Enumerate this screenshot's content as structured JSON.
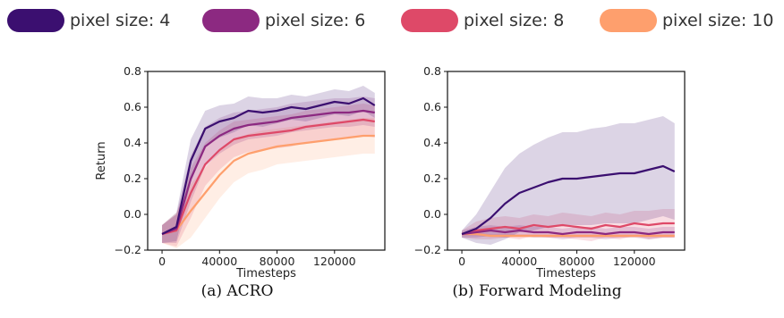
{
  "legend": [
    {
      "label": "pixel size: 4",
      "color": "#3b0f70"
    },
    {
      "label": "pixel size: 6",
      "color": "#8c2981"
    },
    {
      "label": "pixel size: 8",
      "color": "#de4968"
    },
    {
      "label": "pixel size: 10",
      "color": "#fe9f6d"
    }
  ],
  "captions": [
    "(a) ACRO",
    "(b) Forward Modeling"
  ],
  "chart_data": [
    {
      "type": "line",
      "title": "",
      "xlabel": "Timesteps",
      "ylabel": "Return",
      "xlim": [
        -10000,
        155000
      ],
      "ylim": [
        -0.2,
        0.8
      ],
      "xticks": [
        0,
        40000,
        80000,
        120000
      ],
      "yticks": [
        -0.2,
        0.0,
        0.2,
        0.4,
        0.6,
        0.8
      ],
      "xtick_labels": [
        "0",
        "40000",
        "80000",
        "120000"
      ],
      "ytick_labels": [
        "−0.2",
        "0.0",
        "0.2",
        "0.4",
        "0.6",
        "0.8"
      ],
      "x": [
        0,
        10000,
        20000,
        30000,
        40000,
        50000,
        60000,
        70000,
        80000,
        90000,
        100000,
        110000,
        120000,
        130000,
        140000,
        148000
      ],
      "series": [
        {
          "name": "pixel size: 4",
          "color": "#3b0f70",
          "values": [
            -0.11,
            -0.07,
            0.3,
            0.48,
            0.52,
            0.54,
            0.58,
            0.57,
            0.58,
            0.6,
            0.59,
            0.61,
            0.63,
            0.62,
            0.65,
            0.61
          ],
          "band": [
            0.05,
            0.08,
            0.12,
            0.1,
            0.09,
            0.08,
            0.08,
            0.08,
            0.07,
            0.07,
            0.07,
            0.07,
            0.07,
            0.07,
            0.07,
            0.07
          ]
        },
        {
          "name": "pixel size: 6",
          "color": "#8c2981",
          "values": [
            -0.11,
            -0.08,
            0.2,
            0.38,
            0.44,
            0.48,
            0.5,
            0.51,
            0.52,
            0.54,
            0.55,
            0.56,
            0.57,
            0.57,
            0.58,
            0.57
          ],
          "band": [
            0.05,
            0.08,
            0.13,
            0.11,
            0.1,
            0.09,
            0.08,
            0.08,
            0.08,
            0.08,
            0.08,
            0.08,
            0.08,
            0.08,
            0.08,
            0.08
          ]
        },
        {
          "name": "pixel size: 8",
          "color": "#de4968",
          "values": [
            -0.11,
            -0.09,
            0.12,
            0.28,
            0.36,
            0.42,
            0.44,
            0.45,
            0.46,
            0.47,
            0.49,
            0.5,
            0.51,
            0.52,
            0.53,
            0.52
          ],
          "band": [
            0.05,
            0.09,
            0.14,
            0.12,
            0.11,
            0.1,
            0.09,
            0.09,
            0.09,
            0.09,
            0.09,
            0.09,
            0.09,
            0.09,
            0.09,
            0.09
          ]
        },
        {
          "name": "pixel size: 10",
          "color": "#fe9f6d",
          "values": [
            -0.11,
            -0.09,
            0.02,
            0.12,
            0.22,
            0.3,
            0.34,
            0.36,
            0.38,
            0.39,
            0.4,
            0.41,
            0.42,
            0.43,
            0.44,
            0.44
          ],
          "band": [
            0.05,
            0.1,
            0.15,
            0.14,
            0.13,
            0.12,
            0.11,
            0.11,
            0.1,
            0.1,
            0.1,
            0.1,
            0.1,
            0.1,
            0.1,
            0.1
          ]
        }
      ]
    },
    {
      "type": "line",
      "title": "",
      "xlabel": "Timesteps",
      "ylabel": "",
      "xlim": [
        -10000,
        155000
      ],
      "ylim": [
        -0.2,
        0.8
      ],
      "xticks": [
        0,
        40000,
        80000,
        120000
      ],
      "yticks": [
        -0.2,
        0.0,
        0.2,
        0.4,
        0.6,
        0.8
      ],
      "xtick_labels": [
        "0",
        "40000",
        "80000",
        "120000"
      ],
      "ytick_labels": [
        "−0.2",
        "0.0",
        "0.2",
        "0.4",
        "0.6",
        "0.8"
      ],
      "x": [
        0,
        10000,
        20000,
        30000,
        40000,
        50000,
        60000,
        70000,
        80000,
        90000,
        100000,
        110000,
        120000,
        130000,
        140000,
        148000
      ],
      "series": [
        {
          "name": "pixel size: 4",
          "color": "#3b0f70",
          "values": [
            -0.11,
            -0.08,
            -0.02,
            0.06,
            0.12,
            0.15,
            0.18,
            0.2,
            0.2,
            0.21,
            0.22,
            0.23,
            0.23,
            0.25,
            0.27,
            0.24
          ],
          "band": [
            0.02,
            0.08,
            0.15,
            0.2,
            0.22,
            0.24,
            0.25,
            0.26,
            0.26,
            0.27,
            0.27,
            0.28,
            0.28,
            0.28,
            0.28,
            0.27
          ]
        },
        {
          "name": "pixel size: 6",
          "color": "#8c2981",
          "values": [
            -0.11,
            -0.1,
            -0.09,
            -0.1,
            -0.09,
            -0.1,
            -0.1,
            -0.11,
            -0.1,
            -0.1,
            -0.11,
            -0.1,
            -0.1,
            -0.11,
            -0.1,
            -0.1
          ],
          "band": [
            0.02,
            0.03,
            0.03,
            0.03,
            0.03,
            0.03,
            0.03,
            0.03,
            0.03,
            0.03,
            0.03,
            0.03,
            0.03,
            0.03,
            0.03,
            0.03
          ]
        },
        {
          "name": "pixel size: 8",
          "color": "#de4968",
          "values": [
            -0.11,
            -0.09,
            -0.08,
            -0.07,
            -0.08,
            -0.06,
            -0.07,
            -0.06,
            -0.07,
            -0.08,
            -0.06,
            -0.07,
            -0.05,
            -0.06,
            -0.05,
            -0.05
          ],
          "band": [
            0.02,
            0.05,
            0.06,
            0.06,
            0.06,
            0.06,
            0.06,
            0.07,
            0.07,
            0.07,
            0.07,
            0.07,
            0.07,
            0.08,
            0.08,
            0.08
          ]
        },
        {
          "name": "pixel size: 10",
          "color": "#fe9f6d",
          "values": [
            -0.11,
            -0.11,
            -0.12,
            -0.12,
            -0.12,
            -0.12,
            -0.12,
            -0.12,
            -0.12,
            -0.12,
            -0.12,
            -0.12,
            -0.12,
            -0.12,
            -0.12,
            -0.12
          ],
          "band": [
            0.01,
            0.01,
            0.01,
            0.01,
            0.01,
            0.01,
            0.01,
            0.01,
            0.01,
            0.01,
            0.01,
            0.01,
            0.01,
            0.01,
            0.01,
            0.01
          ]
        }
      ]
    }
  ]
}
